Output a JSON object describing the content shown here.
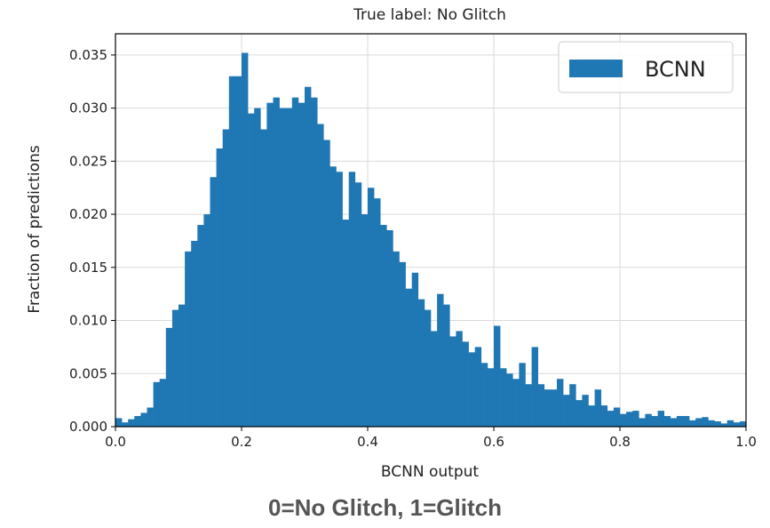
{
  "chart_data": {
    "type": "bar",
    "title": "True label: No Glitch",
    "xlabel": "BCNN output",
    "ylabel": "Fraction of predictions",
    "xlim": [
      0,
      1
    ],
    "ylim": [
      0,
      0.037
    ],
    "xticks": [
      "0.0",
      "0.2",
      "0.4",
      "0.6",
      "0.8",
      "1.0"
    ],
    "yticks": [
      "0.000",
      "0.005",
      "0.010",
      "0.015",
      "0.020",
      "0.025",
      "0.030",
      "0.035"
    ],
    "grid": true,
    "legend_position": "top-right",
    "bar_color": "#1f77b4",
    "bin_width": 0.01,
    "series": [
      {
        "name": "BCNN",
        "x": [
          0.0,
          0.01,
          0.02,
          0.03,
          0.04,
          0.05,
          0.06,
          0.07,
          0.08,
          0.09,
          0.1,
          0.11,
          0.12,
          0.13,
          0.14,
          0.15,
          0.16,
          0.17,
          0.18,
          0.19,
          0.2,
          0.21,
          0.22,
          0.23,
          0.24,
          0.25,
          0.26,
          0.27,
          0.28,
          0.29,
          0.3,
          0.31,
          0.32,
          0.33,
          0.34,
          0.35,
          0.36,
          0.37,
          0.38,
          0.39,
          0.4,
          0.41,
          0.42,
          0.43,
          0.44,
          0.45,
          0.46,
          0.47,
          0.48,
          0.49,
          0.5,
          0.51,
          0.52,
          0.53,
          0.54,
          0.55,
          0.56,
          0.57,
          0.58,
          0.59,
          0.6,
          0.61,
          0.62,
          0.63,
          0.64,
          0.65,
          0.66,
          0.67,
          0.68,
          0.69,
          0.7,
          0.71,
          0.72,
          0.73,
          0.74,
          0.75,
          0.76,
          0.77,
          0.78,
          0.79,
          0.8,
          0.81,
          0.82,
          0.83,
          0.84,
          0.85,
          0.86,
          0.87,
          0.88,
          0.89,
          0.9,
          0.91,
          0.92,
          0.93,
          0.94,
          0.95,
          0.96,
          0.97,
          0.98,
          0.99
        ],
        "values": [
          0.0008,
          0.0004,
          0.0007,
          0.001,
          0.0013,
          0.0018,
          0.0042,
          0.0045,
          0.0093,
          0.011,
          0.0115,
          0.0165,
          0.0175,
          0.019,
          0.02,
          0.0235,
          0.0262,
          0.028,
          0.033,
          0.033,
          0.0352,
          0.0295,
          0.03,
          0.028,
          0.0305,
          0.031,
          0.03,
          0.03,
          0.031,
          0.0305,
          0.032,
          0.031,
          0.0285,
          0.027,
          0.0245,
          0.024,
          0.0195,
          0.024,
          0.023,
          0.02,
          0.0225,
          0.0215,
          0.019,
          0.0185,
          0.0165,
          0.0155,
          0.013,
          0.0145,
          0.012,
          0.011,
          0.009,
          0.0125,
          0.0115,
          0.0085,
          0.009,
          0.008,
          0.007,
          0.0075,
          0.006,
          0.0055,
          0.0095,
          0.0055,
          0.005,
          0.0045,
          0.006,
          0.004,
          0.0075,
          0.004,
          0.0035,
          0.0035,
          0.0045,
          0.003,
          0.004,
          0.0025,
          0.003,
          0.002,
          0.0035,
          0.002,
          0.0015,
          0.0018,
          0.0012,
          0.0014,
          0.0015,
          0.0008,
          0.0012,
          0.001,
          0.0015,
          0.001,
          0.0008,
          0.001,
          0.001,
          0.0006,
          0.0008,
          0.0009,
          0.0006,
          0.0005,
          0.0003,
          0.0006,
          0.0004,
          0.0005
        ]
      }
    ]
  },
  "caption": "0=No Glitch, 1=Glitch"
}
